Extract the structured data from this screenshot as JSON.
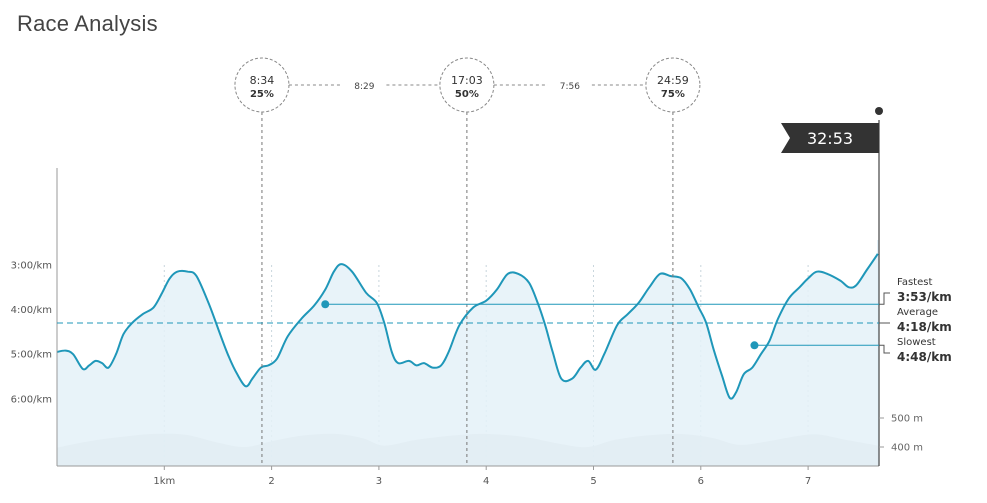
{
  "title": "Race Analysis",
  "colors": {
    "line": "#1f97b9",
    "fill_light": "#e4f1f8",
    "fill_highlight": "#a6dbf0",
    "elevation": "#dedede",
    "finish_flag": "#333333"
  },
  "chart_data": {
    "type": "area",
    "title": "Race Analysis",
    "xlabel": "",
    "ylabel": "",
    "x_unit": "km",
    "y_unit": "min/km (pace, inverted axis)",
    "x_ticks": [
      {
        "v": 1,
        "label": "1km"
      },
      {
        "v": 2,
        "label": "2"
      },
      {
        "v": 3,
        "label": "3"
      },
      {
        "v": 4,
        "label": "4"
      },
      {
        "v": 5,
        "label": "5"
      },
      {
        "v": 6,
        "label": "6"
      },
      {
        "v": 7,
        "label": "7"
      }
    ],
    "y_ticks": [
      {
        "v": 3,
        "label": "3:00/km"
      },
      {
        "v": 4,
        "label": "4:00/km"
      },
      {
        "v": 5,
        "label": "5:00/km"
      },
      {
        "v": 6,
        "label": "6:00/km"
      }
    ],
    "elevation_ticks": [
      {
        "v": 500,
        "label": "500 m"
      },
      {
        "v": 400,
        "label": "400 m"
      }
    ],
    "xlim": [
      0,
      7.65
    ],
    "pace": [
      [
        0.0,
        4.95
      ],
      [
        0.08,
        4.92
      ],
      [
        0.15,
        5.0
      ],
      [
        0.24,
        5.33
      ],
      [
        0.3,
        5.25
      ],
      [
        0.36,
        5.15
      ],
      [
        0.42,
        5.2
      ],
      [
        0.48,
        5.3
      ],
      [
        0.55,
        5.0
      ],
      [
        0.62,
        4.55
      ],
      [
        0.7,
        4.3
      ],
      [
        0.8,
        4.1
      ],
      [
        0.9,
        3.95
      ],
      [
        0.98,
        3.62
      ],
      [
        1.05,
        3.3
      ],
      [
        1.12,
        3.15
      ],
      [
        1.22,
        3.15
      ],
      [
        1.3,
        3.25
      ],
      [
        1.42,
        3.9
      ],
      [
        1.52,
        4.55
      ],
      [
        1.6,
        5.05
      ],
      [
        1.68,
        5.45
      ],
      [
        1.76,
        5.72
      ],
      [
        1.82,
        5.55
      ],
      [
        1.9,
        5.3
      ],
      [
        1.97,
        5.25
      ],
      [
        2.05,
        5.1
      ],
      [
        2.15,
        4.6
      ],
      [
        2.28,
        4.2
      ],
      [
        2.4,
        3.9
      ],
      [
        2.5,
        3.55
      ],
      [
        2.58,
        3.15
      ],
      [
        2.65,
        2.98
      ],
      [
        2.75,
        3.15
      ],
      [
        2.88,
        3.62
      ],
      [
        2.98,
        3.85
      ],
      [
        3.05,
        4.3
      ],
      [
        3.12,
        4.95
      ],
      [
        3.18,
        5.2
      ],
      [
        3.28,
        5.15
      ],
      [
        3.35,
        5.25
      ],
      [
        3.42,
        5.2
      ],
      [
        3.5,
        5.3
      ],
      [
        3.58,
        5.25
      ],
      [
        3.65,
        4.95
      ],
      [
        3.75,
        4.35
      ],
      [
        3.88,
        3.95
      ],
      [
        4.0,
        3.8
      ],
      [
        4.1,
        3.55
      ],
      [
        4.2,
        3.2
      ],
      [
        4.3,
        3.2
      ],
      [
        4.4,
        3.4
      ],
      [
        4.48,
        3.85
      ],
      [
        4.55,
        4.35
      ],
      [
        4.62,
        4.95
      ],
      [
        4.7,
        5.55
      ],
      [
        4.8,
        5.55
      ],
      [
        4.88,
        5.3
      ],
      [
        4.95,
        5.15
      ],
      [
        5.02,
        5.35
      ],
      [
        5.1,
        5.0
      ],
      [
        5.22,
        4.35
      ],
      [
        5.32,
        4.1
      ],
      [
        5.42,
        3.85
      ],
      [
        5.52,
        3.5
      ],
      [
        5.62,
        3.2
      ],
      [
        5.72,
        3.25
      ],
      [
        5.82,
        3.3
      ],
      [
        5.9,
        3.55
      ],
      [
        5.98,
        3.95
      ],
      [
        6.05,
        4.3
      ],
      [
        6.12,
        4.9
      ],
      [
        6.2,
        5.5
      ],
      [
        6.27,
        5.98
      ],
      [
        6.33,
        5.85
      ],
      [
        6.4,
        5.45
      ],
      [
        6.48,
        5.3
      ],
      [
        6.56,
        5.0
      ],
      [
        6.64,
        4.7
      ],
      [
        6.72,
        4.2
      ],
      [
        6.82,
        3.75
      ],
      [
        6.92,
        3.5
      ],
      [
        7.0,
        3.3
      ],
      [
        7.08,
        3.15
      ],
      [
        7.18,
        3.2
      ],
      [
        7.3,
        3.35
      ],
      [
        7.38,
        3.5
      ],
      [
        7.45,
        3.45
      ],
      [
        7.55,
        3.1
      ],
      [
        7.65,
        2.75
      ]
    ],
    "elevation": [
      [
        0.0,
        398
      ],
      [
        0.3,
        420
      ],
      [
        0.6,
        435
      ],
      [
        0.9,
        445
      ],
      [
        1.2,
        442
      ],
      [
        1.5,
        415
      ],
      [
        1.75,
        400
      ],
      [
        2.0,
        420
      ],
      [
        2.3,
        440
      ],
      [
        2.6,
        445
      ],
      [
        2.85,
        430
      ],
      [
        3.05,
        405
      ],
      [
        3.35,
        425
      ],
      [
        3.7,
        440
      ],
      [
        4.0,
        445
      ],
      [
        4.35,
        435
      ],
      [
        4.7,
        410
      ],
      [
        4.95,
        400
      ],
      [
        5.2,
        425
      ],
      [
        5.5,
        440
      ],
      [
        5.8,
        445
      ],
      [
        6.1,
        432
      ],
      [
        6.35,
        408
      ],
      [
        6.6,
        418
      ],
      [
        6.9,
        438
      ],
      [
        7.1,
        443
      ],
      [
        7.35,
        425
      ],
      [
        7.65,
        405
      ]
    ],
    "highlight_ranges": [
      [
        2,
        3
      ],
      [
        6,
        7
      ]
    ],
    "average_pace": {
      "label": "Average",
      "value": "4:18/km",
      "v": 4.3
    },
    "fastest": {
      "label": "Fastest",
      "value": "3:53/km",
      "v": 3.88,
      "km": 2.5
    },
    "slowest": {
      "label": "Slowest",
      "value": "4:48/km",
      "v": 4.8,
      "km": 6.5
    },
    "milestones": [
      {
        "time": "8:34",
        "pct": "25%",
        "km": 1.91
      },
      {
        "time": "17:03",
        "pct": "50%",
        "km": 3.82
      },
      {
        "time": "24:59",
        "pct": "75%",
        "km": 5.74
      }
    ],
    "splits": [
      "8:29",
      "7:56"
    ],
    "finish_time": "32:53"
  }
}
